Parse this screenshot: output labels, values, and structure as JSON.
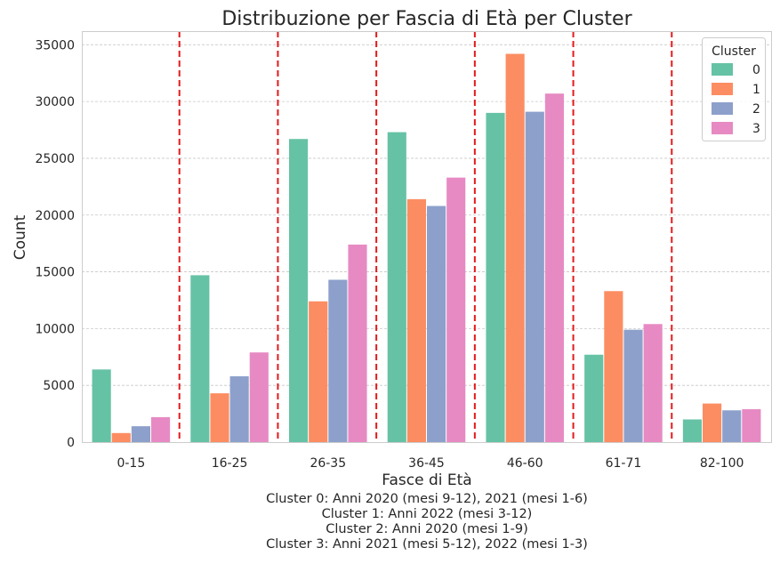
{
  "chart_data": {
    "type": "bar",
    "title": "Distribuzione per Fascia di Età per Cluster",
    "xlabel": "Fasce di Età",
    "ylabel": "Count",
    "categories": [
      "0-15",
      "16-25",
      "26-35",
      "36-45",
      "46-60",
      "61-71",
      "82-100"
    ],
    "series": [
      {
        "name": "0",
        "color": "#66c2a5",
        "values": [
          6400,
          14700,
          26700,
          27300,
          29000,
          7700,
          2000
        ]
      },
      {
        "name": "1",
        "color": "#fc8d62",
        "values": [
          800,
          4300,
          12400,
          21400,
          34200,
          13300,
          3400
        ]
      },
      {
        "name": "2",
        "color": "#8da0cb",
        "values": [
          1400,
          5800,
          14300,
          20800,
          29100,
          9900,
          2800
        ]
      },
      {
        "name": "3",
        "color": "#e78ac3",
        "values": [
          2200,
          7900,
          17400,
          23300,
          30700,
          10400,
          2900
        ]
      }
    ],
    "ylim": [
      0,
      36200
    ],
    "yticks": [
      0,
      5000,
      10000,
      15000,
      20000,
      25000,
      30000,
      35000
    ],
    "grid": true,
    "legend": {
      "title": "Cluster",
      "placement": "top-right"
    },
    "separator_lines": {
      "color": "#e41a1c",
      "style": "dashed"
    }
  },
  "caption": [
    "Cluster 0: Anni 2020 (mesi 9-12), 2021 (mesi 1-6)",
    "Cluster 1: Anni 2022 (mesi 3-12)",
    "Cluster 2: Anni 2020 (mesi 1-9)",
    "Cluster 3: Anni 2021 (mesi 5-12), 2022 (mesi 1-3)"
  ]
}
